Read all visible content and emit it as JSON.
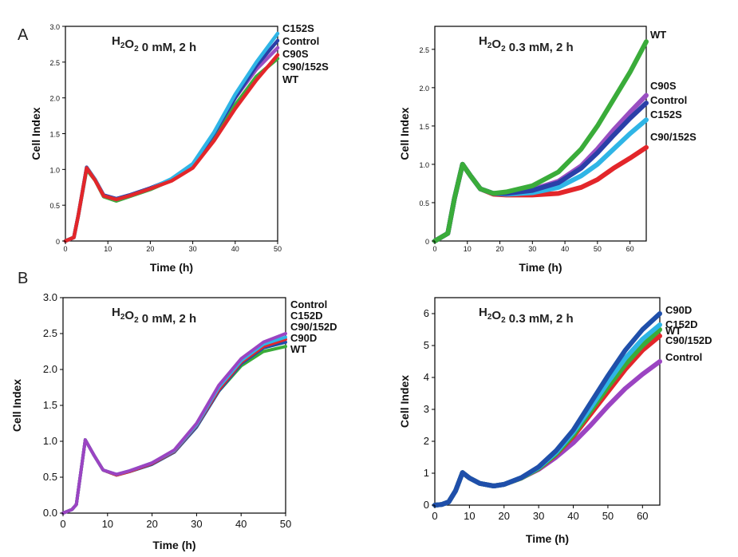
{
  "figure": {
    "panel_A": "A",
    "panel_B": "B"
  },
  "colors": {
    "WT": "#3aac3a",
    "Control": "#2a3fa8",
    "C152S": "#2fb5e6",
    "C90S": "#9a4fc2",
    "C90/152S": "#e3262a",
    "C90D": "#1f4faa",
    "C152D": "#2fb5e6",
    "C90/152D": "#e3262a"
  },
  "chart_data": [
    {
      "type": "line",
      "title_prefix": "H",
      "title_sub1": "2",
      "title_mid": "O",
      "title_sub2": "2",
      "title_suffix": " 0 mM, 2 h",
      "xlabel": "Time (h)",
      "ylabel": "Cell Index",
      "xlim": [
        0,
        50
      ],
      "ylim": [
        0,
        3.0
      ],
      "xticks": [
        0,
        10,
        20,
        30,
        40,
        50
      ],
      "yticks": [
        0,
        0.5,
        1.0,
        1.5,
        2.0,
        2.5,
        3.0
      ],
      "ytick_labels": [
        "0",
        "0.5",
        "1.0",
        "1.5",
        "2.0",
        "2.5",
        "3.0"
      ],
      "legend_order": [
        "C152S",
        "Control",
        "C90S",
        "C90/152S",
        "WT"
      ],
      "series": [
        {
          "name": "WT",
          "x": [
            0,
            2,
            3,
            5,
            7,
            9,
            12,
            15,
            20,
            25,
            30,
            35,
            40,
            45,
            50
          ],
          "y": [
            0,
            0.05,
            0.35,
            1.0,
            0.85,
            0.62,
            0.56,
            0.62,
            0.72,
            0.85,
            1.05,
            1.45,
            1.9,
            2.3,
            2.55
          ]
        },
        {
          "name": "Control",
          "x": [
            0,
            2,
            3,
            5,
            7,
            9,
            12,
            15,
            20,
            25,
            30,
            35,
            40,
            45,
            50
          ],
          "y": [
            0,
            0.05,
            0.35,
            1.03,
            0.86,
            0.64,
            0.59,
            0.64,
            0.74,
            0.86,
            1.06,
            1.5,
            2.0,
            2.45,
            2.8
          ]
        },
        {
          "name": "C152S",
          "x": [
            0,
            2,
            3,
            5,
            7,
            9,
            12,
            15,
            20,
            25,
            30,
            35,
            40,
            45,
            50
          ],
          "y": [
            0,
            0.05,
            0.35,
            1.02,
            0.86,
            0.63,
            0.58,
            0.63,
            0.73,
            0.87,
            1.08,
            1.52,
            2.05,
            2.5,
            2.9
          ]
        },
        {
          "name": "C90S",
          "x": [
            0,
            2,
            3,
            5,
            7,
            9,
            12,
            15,
            20,
            25,
            30,
            35,
            40,
            45,
            50
          ],
          "y": [
            0,
            0.05,
            0.35,
            1.02,
            0.86,
            0.64,
            0.59,
            0.64,
            0.74,
            0.86,
            1.07,
            1.5,
            2.0,
            2.4,
            2.7
          ]
        },
        {
          "name": "C90/152S",
          "x": [
            0,
            2,
            3,
            5,
            7,
            9,
            12,
            15,
            20,
            25,
            30,
            35,
            40,
            45,
            50
          ],
          "y": [
            0,
            0.05,
            0.35,
            1.02,
            0.85,
            0.63,
            0.58,
            0.63,
            0.73,
            0.84,
            1.02,
            1.4,
            1.85,
            2.25,
            2.6
          ]
        }
      ]
    },
    {
      "type": "line",
      "title_prefix": "H",
      "title_sub1": "2",
      "title_mid": "O",
      "title_sub2": "2",
      "title_suffix": " 0.3 mM, 2 h",
      "xlabel": "Time (h)",
      "ylabel": "Cell Index",
      "xlim": [
        0,
        65
      ],
      "ylim": [
        0,
        2.8
      ],
      "xticks": [
        0,
        10,
        20,
        30,
        40,
        50,
        60
      ],
      "yticks": [
        0,
        0.5,
        1.0,
        1.5,
        2.0,
        2.5
      ],
      "ytick_labels": [
        "0",
        "0.5",
        "1.0",
        "1.5",
        "2.0",
        "2.5"
      ],
      "legend_order": [
        "WT",
        "C90S",
        "Control",
        "C152S",
        "C90/152S"
      ],
      "series": [
        {
          "name": "WT",
          "x": [
            0,
            2,
            4,
            6,
            8.5,
            11,
            14,
            18,
            22,
            30,
            38,
            45,
            50,
            55,
            60,
            65
          ],
          "y": [
            0,
            0.05,
            0.1,
            0.55,
            1.0,
            0.85,
            0.68,
            0.62,
            0.64,
            0.72,
            0.9,
            1.2,
            1.5,
            1.85,
            2.2,
            2.6
          ]
        },
        {
          "name": "Control",
          "x": [
            0,
            2,
            4,
            6,
            8.5,
            11,
            14,
            18,
            22,
            30,
            38,
            45,
            50,
            55,
            60,
            65
          ],
          "y": [
            0,
            0.05,
            0.1,
            0.55,
            1.0,
            0.85,
            0.68,
            0.62,
            0.62,
            0.66,
            0.76,
            0.95,
            1.15,
            1.38,
            1.6,
            1.8
          ]
        },
        {
          "name": "C152S",
          "x": [
            0,
            2,
            4,
            6,
            8.5,
            11,
            14,
            18,
            22,
            30,
            38,
            45,
            50,
            55,
            60,
            65
          ],
          "y": [
            0,
            0.05,
            0.1,
            0.55,
            1.0,
            0.85,
            0.68,
            0.62,
            0.61,
            0.63,
            0.7,
            0.85,
            1.0,
            1.2,
            1.4,
            1.58
          ]
        },
        {
          "name": "C90S",
          "x": [
            0,
            2,
            4,
            6,
            8.5,
            11,
            14,
            18,
            22,
            30,
            38,
            45,
            50,
            55,
            60,
            65
          ],
          "y": [
            0,
            0.05,
            0.1,
            0.55,
            1.0,
            0.85,
            0.68,
            0.62,
            0.62,
            0.67,
            0.78,
            0.98,
            1.2,
            1.45,
            1.68,
            1.9
          ]
        },
        {
          "name": "C90/152S",
          "x": [
            0,
            2,
            4,
            6,
            8.5,
            11,
            14,
            18,
            22,
            30,
            38,
            45,
            50,
            55,
            60,
            65
          ],
          "y": [
            0,
            0.05,
            0.1,
            0.55,
            1.0,
            0.85,
            0.68,
            0.61,
            0.6,
            0.6,
            0.62,
            0.7,
            0.8,
            0.95,
            1.08,
            1.22
          ]
        }
      ]
    },
    {
      "type": "line",
      "title_prefix": "H",
      "title_sub1": "2",
      "title_mid": "O",
      "title_sub2": "2",
      "title_suffix": " 0 mM, 2 h",
      "xlabel": "Time (h)",
      "ylabel": "Cell Index",
      "xlim": [
        0,
        50
      ],
      "ylim": [
        0,
        3.0
      ],
      "xticks": [
        0,
        10,
        20,
        30,
        40,
        50
      ],
      "yticks": [
        0,
        0.5,
        1.0,
        1.5,
        2.0,
        2.5,
        3.0
      ],
      "ytick_labels": [
        "0.0",
        "0.5",
        "1.0",
        "1.5",
        "2.0",
        "2.5",
        "3.0"
      ],
      "legend_order": [
        "Control",
        "C152D",
        "C90/152D",
        "C90D",
        "WT"
      ],
      "series": [
        {
          "name": "WT",
          "x": [
            0,
            2,
            3,
            5,
            7,
            9,
            12,
            15,
            20,
            25,
            30,
            35,
            40,
            45,
            50
          ],
          "y": [
            0,
            0.05,
            0.12,
            1.02,
            0.8,
            0.6,
            0.53,
            0.58,
            0.68,
            0.85,
            1.2,
            1.7,
            2.05,
            2.25,
            2.32
          ]
        },
        {
          "name": "Control",
          "x": [
            0,
            2,
            3,
            5,
            7,
            9,
            12,
            15,
            20,
            25,
            30,
            35,
            40,
            45,
            50
          ],
          "y": [
            0,
            0.05,
            0.12,
            1.02,
            0.8,
            0.6,
            0.54,
            0.59,
            0.7,
            0.88,
            1.25,
            1.78,
            2.15,
            2.38,
            2.5
          ]
        },
        {
          "name": "C152D",
          "x": [
            0,
            2,
            3,
            5,
            7,
            9,
            12,
            15,
            20,
            25,
            30,
            35,
            40,
            45,
            50
          ],
          "y": [
            0,
            0.05,
            0.12,
            1.02,
            0.8,
            0.6,
            0.54,
            0.59,
            0.7,
            0.87,
            1.23,
            1.75,
            2.12,
            2.35,
            2.45
          ]
        },
        {
          "name": "C90/152D",
          "x": [
            0,
            2,
            3,
            5,
            7,
            9,
            12,
            15,
            20,
            25,
            30,
            35,
            40,
            45,
            50
          ],
          "y": [
            0,
            0.05,
            0.12,
            1.02,
            0.8,
            0.6,
            0.53,
            0.58,
            0.69,
            0.86,
            1.22,
            1.72,
            2.1,
            2.32,
            2.42
          ]
        },
        {
          "name": "C90D",
          "x": [
            0,
            2,
            3,
            5,
            7,
            9,
            12,
            15,
            20,
            25,
            30,
            35,
            40,
            45,
            50
          ],
          "y": [
            0,
            0.05,
            0.12,
            1.02,
            0.8,
            0.6,
            0.53,
            0.58,
            0.68,
            0.85,
            1.2,
            1.7,
            2.08,
            2.3,
            2.38
          ]
        }
      ]
    },
    {
      "type": "line",
      "title_prefix": "H",
      "title_sub1": "2",
      "title_mid": "O",
      "title_sub2": "2",
      "title_suffix": " 0.3 mM, 2 h",
      "xlabel": "Time (h)",
      "ylabel": "Cell Index",
      "xlim": [
        0,
        65
      ],
      "ylim": [
        0,
        6.5
      ],
      "xticks": [
        0,
        10,
        20,
        30,
        40,
        50,
        60
      ],
      "yticks": [
        0,
        1,
        2,
        3,
        4,
        5,
        6
      ],
      "ytick_labels": [
        "0",
        "1",
        "2",
        "3",
        "4",
        "5",
        "6"
      ],
      "legend_order": [
        "C90D",
        "C152D",
        "WT",
        "C90/152D",
        "Control"
      ],
      "series": [
        {
          "name": "WT",
          "x": [
            0,
            2,
            4,
            6,
            8,
            10,
            13,
            17,
            20,
            25,
            30,
            35,
            40,
            45,
            50,
            55,
            60,
            65
          ],
          "y": [
            0,
            0.02,
            0.1,
            0.45,
            1.02,
            0.85,
            0.68,
            0.6,
            0.65,
            0.85,
            1.15,
            1.6,
            2.2,
            2.95,
            3.7,
            4.4,
            5.0,
            5.5
          ]
        },
        {
          "name": "Control",
          "x": [
            0,
            2,
            4,
            6,
            8,
            10,
            13,
            17,
            20,
            25,
            30,
            35,
            40,
            45,
            50,
            55,
            60,
            65
          ],
          "y": [
            0,
            0.02,
            0.1,
            0.45,
            1.02,
            0.85,
            0.68,
            0.6,
            0.65,
            0.85,
            1.12,
            1.5,
            1.95,
            2.5,
            3.1,
            3.65,
            4.1,
            4.5
          ]
        },
        {
          "name": "C90D",
          "x": [
            0,
            2,
            4,
            6,
            8,
            10,
            13,
            17,
            20,
            25,
            30,
            35,
            40,
            45,
            50,
            55,
            60,
            65
          ],
          "y": [
            0,
            0.02,
            0.1,
            0.45,
            1.02,
            0.85,
            0.68,
            0.6,
            0.65,
            0.86,
            1.2,
            1.7,
            2.35,
            3.2,
            4.05,
            4.85,
            5.5,
            6.0
          ]
        },
        {
          "name": "C152D",
          "x": [
            0,
            2,
            4,
            6,
            8,
            10,
            13,
            17,
            20,
            25,
            30,
            35,
            40,
            45,
            50,
            55,
            60,
            65
          ],
          "y": [
            0,
            0.02,
            0.1,
            0.45,
            1.02,
            0.85,
            0.68,
            0.6,
            0.65,
            0.86,
            1.18,
            1.65,
            2.28,
            3.05,
            3.85,
            4.6,
            5.2,
            5.65
          ]
        },
        {
          "name": "C90/152D",
          "x": [
            0,
            2,
            4,
            6,
            8,
            10,
            13,
            17,
            20,
            25,
            30,
            35,
            40,
            45,
            50,
            55,
            60,
            65
          ],
          "y": [
            0,
            0.02,
            0.1,
            0.45,
            1.02,
            0.85,
            0.68,
            0.6,
            0.65,
            0.85,
            1.14,
            1.58,
            2.15,
            2.85,
            3.55,
            4.25,
            4.85,
            5.3
          ]
        }
      ]
    }
  ]
}
